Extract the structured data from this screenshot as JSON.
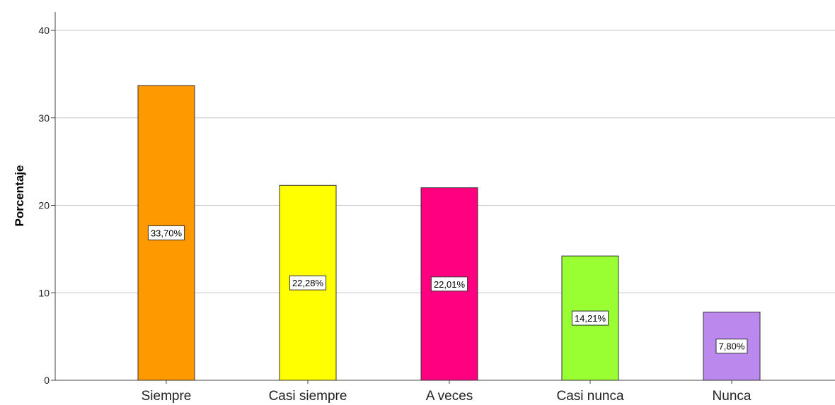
{
  "chart_data": {
    "type": "bar",
    "title": "",
    "xlabel": "",
    "ylabel": "Porcentaje",
    "ylim": [
      0,
      40
    ],
    "yticks": [
      "0",
      "10",
      "20",
      "30",
      "40"
    ],
    "grid": true,
    "categories": [
      "Siempre",
      "Casi siempre",
      "A veces",
      "Casi nunca",
      "Nunca"
    ],
    "values": [
      33.7,
      22.28,
      22.01,
      14.21,
      7.8
    ],
    "data_labels": [
      "33,70%",
      "22,28%",
      "22,01%",
      "14,21%",
      "7,80%"
    ],
    "colors": [
      "#ff9900",
      "#ffff00",
      "#ff0080",
      "#99ff33",
      "#bb88ee"
    ]
  }
}
